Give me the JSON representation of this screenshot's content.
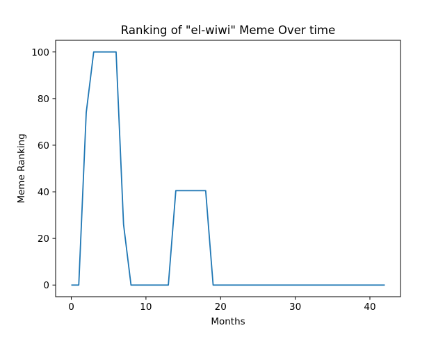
{
  "chart_data": {
    "type": "line",
    "title": "Ranking of \"el-wiwi\" Meme Over time",
    "xlabel": "Months",
    "ylabel": "Meme Ranking",
    "xlim": [
      -2.1,
      44.1
    ],
    "ylim": [
      -5,
      105
    ],
    "xticks": [
      0,
      10,
      20,
      30,
      40
    ],
    "yticks": [
      0,
      20,
      40,
      60,
      80,
      100
    ],
    "grid": false,
    "line_color": "#1f77b4",
    "series": [
      {
        "x": [
          0,
          1,
          2,
          3,
          4,
          5,
          6,
          7,
          8,
          9,
          10,
          11,
          12,
          13,
          14,
          15,
          16,
          17,
          18,
          19,
          20,
          21,
          22,
          23,
          24,
          25,
          26,
          27,
          28,
          29,
          30,
          31,
          32,
          33,
          34,
          35,
          36,
          37,
          38,
          39,
          40,
          41,
          42
        ],
        "y": [
          0,
          0,
          74,
          100,
          100,
          100,
          100,
          26,
          0,
          0,
          0,
          0,
          0,
          0,
          40.5,
          40.5,
          40.5,
          40.5,
          40.5,
          0,
          0,
          0,
          0,
          0,
          0,
          0,
          0,
          0,
          0,
          0,
          0,
          0,
          0,
          0,
          0,
          0,
          0,
          0,
          0,
          0,
          0,
          0,
          0
        ]
      }
    ]
  }
}
